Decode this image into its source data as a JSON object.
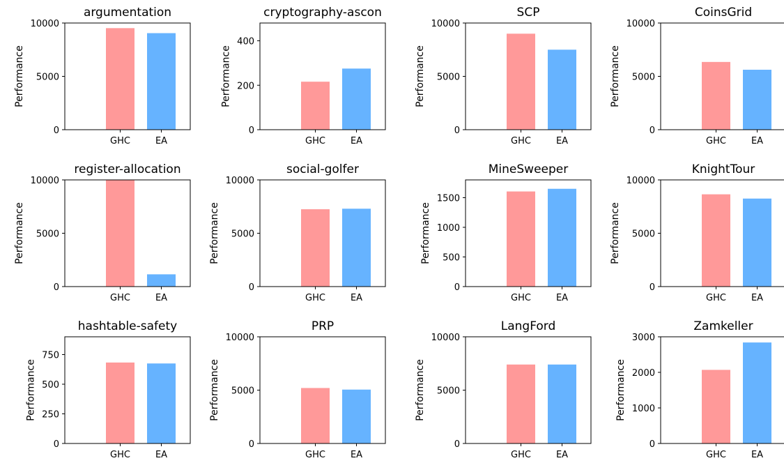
{
  "chart_data": [
    {
      "type": "bar",
      "title": "argumentation",
      "ylabel": "Performance",
      "categories": [
        "GHC",
        "EA"
      ],
      "values": [
        9520,
        9050
      ],
      "ylim": [
        0,
        10000
      ],
      "yticks": [
        0,
        5000,
        10000
      ],
      "colors": [
        "#ff9999",
        "#66b3ff"
      ]
    },
    {
      "type": "bar",
      "title": "cryptography-ascon",
      "ylabel": "Performance",
      "categories": [
        "GHC",
        "EA"
      ],
      "values": [
        216,
        275
      ],
      "ylim": [
        0,
        480
      ],
      "yticks": [
        0,
        200,
        400
      ],
      "colors": [
        "#ff9999",
        "#66b3ff"
      ]
    },
    {
      "type": "bar",
      "title": "SCP",
      "ylabel": "Performance",
      "categories": [
        "GHC",
        "EA"
      ],
      "values": [
        9000,
        7500
      ],
      "ylim": [
        0,
        10000
      ],
      "yticks": [
        0,
        5000,
        10000
      ],
      "colors": [
        "#ff9999",
        "#66b3ff"
      ]
    },
    {
      "type": "bar",
      "title": "CoinsGrid",
      "ylabel": "Performance",
      "categories": [
        "GHC",
        "EA"
      ],
      "values": [
        6350,
        5620
      ],
      "ylim": [
        0,
        10000
      ],
      "yticks": [
        0,
        5000,
        10000
      ],
      "colors": [
        "#ff9999",
        "#66b3ff"
      ]
    },
    {
      "type": "bar",
      "title": "register-allocation",
      "ylabel": "Performance",
      "categories": [
        "GHC",
        "EA"
      ],
      "values": [
        10000,
        1150
      ],
      "ylim": [
        0,
        10000
      ],
      "yticks": [
        0,
        5000,
        10000
      ],
      "colors": [
        "#ff9999",
        "#66b3ff"
      ]
    },
    {
      "type": "bar",
      "title": "social-golfer",
      "ylabel": "Performance",
      "categories": [
        "GHC",
        "EA"
      ],
      "values": [
        7250,
        7300
      ],
      "ylim": [
        0,
        10000
      ],
      "yticks": [
        0,
        5000,
        10000
      ],
      "colors": [
        "#ff9999",
        "#66b3ff"
      ]
    },
    {
      "type": "bar",
      "title": "MineSweeper",
      "ylabel": "Performance",
      "categories": [
        "GHC",
        "EA"
      ],
      "values": [
        1605,
        1650
      ],
      "ylim": [
        0,
        1800
      ],
      "yticks": [
        0,
        500,
        1000,
        1500
      ],
      "colors": [
        "#ff9999",
        "#66b3ff"
      ]
    },
    {
      "type": "bar",
      "title": "KnightTour",
      "ylabel": "Performance",
      "categories": [
        "GHC",
        "EA"
      ],
      "values": [
        8650,
        8250
      ],
      "ylim": [
        0,
        10000
      ],
      "yticks": [
        0,
        5000,
        10000
      ],
      "colors": [
        "#ff9999",
        "#66b3ff"
      ]
    },
    {
      "type": "bar",
      "title": "hashtable-safety",
      "ylabel": "Performance",
      "categories": [
        "GHC",
        "EA"
      ],
      "values": [
        683,
        675
      ],
      "ylim": [
        0,
        900
      ],
      "yticks": [
        0,
        250,
        500,
        750
      ],
      "colors": [
        "#ff9999",
        "#66b3ff"
      ]
    },
    {
      "type": "bar",
      "title": "PRP",
      "ylabel": "Performance",
      "categories": [
        "GHC",
        "EA"
      ],
      "values": [
        5200,
        5050
      ],
      "ylim": [
        0,
        10000
      ],
      "yticks": [
        0,
        5000,
        10000
      ],
      "colors": [
        "#ff9999",
        "#66b3ff"
      ]
    },
    {
      "type": "bar",
      "title": "LangFord",
      "ylabel": "Performance",
      "categories": [
        "GHC",
        "EA"
      ],
      "values": [
        7400,
        7400
      ],
      "ylim": [
        0,
        10000
      ],
      "yticks": [
        0,
        5000,
        10000
      ],
      "colors": [
        "#ff9999",
        "#66b3ff"
      ]
    },
    {
      "type": "bar",
      "title": "Zamkeller",
      "ylabel": "Performance",
      "categories": [
        "GHC",
        "EA"
      ],
      "values": [
        2070,
        2840
      ],
      "ylim": [
        0,
        3000
      ],
      "yticks": [
        0,
        1000,
        2000,
        3000
      ],
      "colors": [
        "#ff9999",
        "#66b3ff"
      ]
    }
  ]
}
